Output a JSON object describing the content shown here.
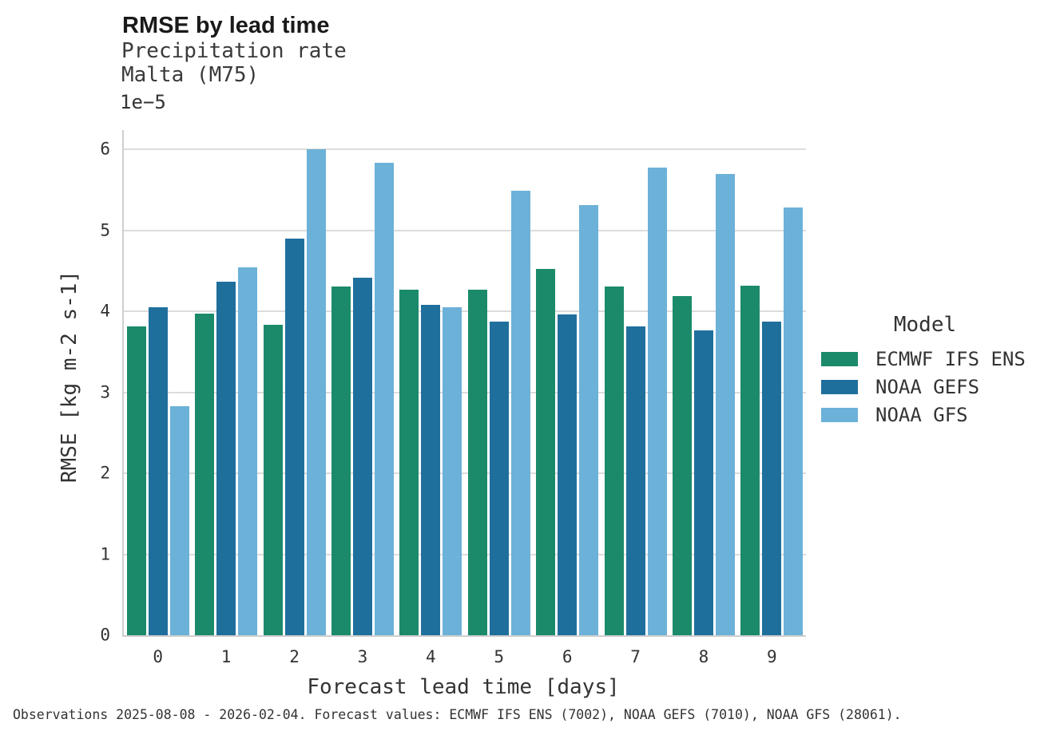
{
  "header": {
    "title": "RMSE by lead time",
    "subtitle_variable": "Precipitation rate",
    "subtitle_station": "Malta (M75)"
  },
  "axes": {
    "y_offset_label": "1e−5",
    "y_label": "RMSE [kg m-2 s-1]",
    "x_label": "Forecast lead time [days]"
  },
  "legend": {
    "title": "Model"
  },
  "footer": {
    "caption": "Observations 2025-08-08 - 2026-02-04. Forecast values: ECMWF IFS ENS (7002), NOAA GEFS (7010), NOAA GFS (28061)."
  },
  "colors": {
    "ecmwf_ifs_ens": "#1B8A6B",
    "noaa_gefs": "#1F6F9D",
    "noaa_gfs": "#6CB1D8",
    "gridline": "#DCDCDC",
    "spine": "#CFCFCF",
    "text": "#333333"
  },
  "chart_data": {
    "type": "bar",
    "title": "RMSE by lead time",
    "subtitle": "Precipitation rate",
    "station": "Malta (M75)",
    "xlabel": "Forecast lead time [days]",
    "ylabel": "RMSE [kg m-2 s-1]",
    "y_scale_factor": "1e-5",
    "categories": [
      "0",
      "1",
      "2",
      "3",
      "4",
      "5",
      "6",
      "7",
      "8",
      "9"
    ],
    "series": [
      {
        "name": "ECMWF IFS ENS",
        "color": "#1B8A6B",
        "values": [
          3.82,
          3.97,
          3.83,
          4.31,
          4.27,
          4.27,
          4.52,
          4.31,
          4.19,
          4.32
        ]
      },
      {
        "name": "NOAA GEFS",
        "color": "#1F6F9D",
        "values": [
          4.05,
          4.37,
          4.9,
          4.42,
          4.08,
          3.87,
          3.96,
          3.82,
          3.77,
          3.87
        ]
      },
      {
        "name": "NOAA GFS",
        "color": "#6CB1D8",
        "values": [
          2.83,
          4.54,
          6.0,
          5.84,
          4.05,
          5.49,
          5.31,
          5.78,
          5.7,
          5.28
        ]
      }
    ],
    "values_unit": "x1e-5 kg m-2 s-1",
    "ylim": [
      0,
      6.24
    ],
    "yticks": [
      0,
      1,
      2,
      3,
      4,
      5,
      6
    ],
    "grid": true,
    "legend_title": "Model",
    "legend_position": "right"
  }
}
